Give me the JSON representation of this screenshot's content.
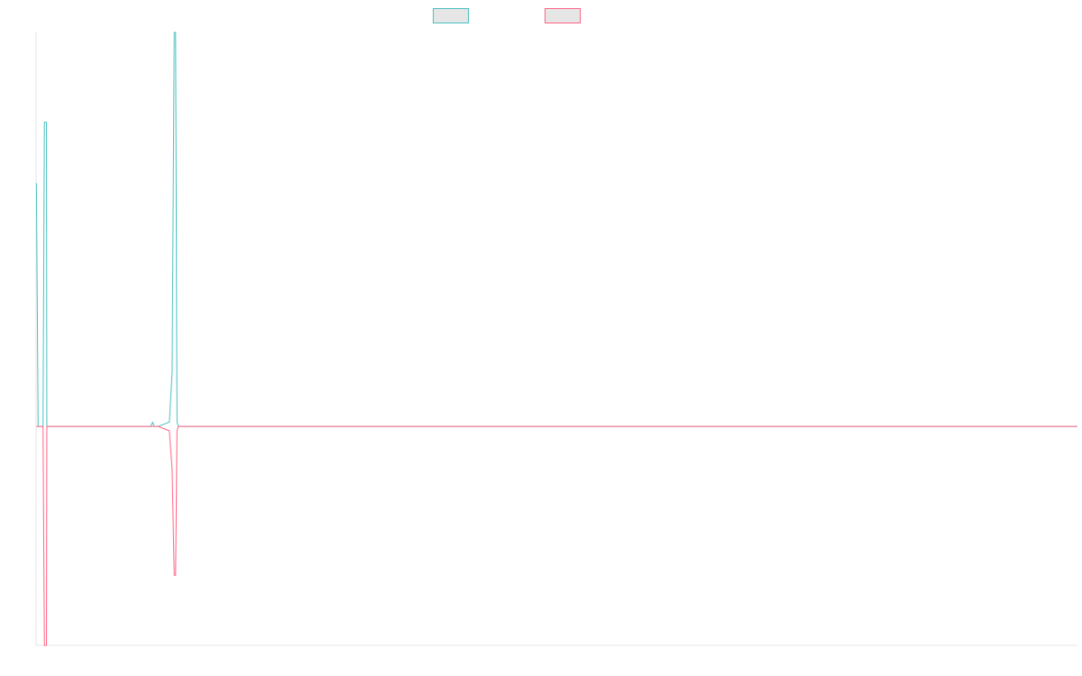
{
  "chart_data": {
    "type": "line",
    "title": "",
    "xlabel": "",
    "ylabel": "",
    "grid": false,
    "legend_position": "top-center",
    "xlim": [
      0,
      150
    ],
    "ylim": [
      -1.0,
      1.8
    ],
    "x": [
      0,
      0.05,
      0.3,
      0.85,
      1.0,
      1.2,
      1.5,
      1.55,
      1.75,
      16.5,
      16.8,
      17.0,
      17.3,
      17.6,
      19.2,
      19.6,
      19.9,
      20.1,
      20.3,
      20.5,
      20.8,
      21.2,
      150
    ],
    "series": [
      {
        "name": "",
        "color": "#4bc0c0",
        "values": [
          1.11,
          1.11,
          0,
          0,
          0,
          1.39,
          1.39,
          0,
          0,
          0,
          0.02,
          0,
          0,
          0,
          0.02,
          0.25,
          1.8,
          1.8,
          0.02,
          0,
          0,
          0,
          0
        ]
      },
      {
        "name": "",
        "color": "#ff6384",
        "values": [
          0,
          0,
          0,
          0,
          0,
          -1.0,
          -1.0,
          0,
          0,
          0,
          0,
          0,
          0,
          0,
          -0.02,
          -0.2,
          -0.68,
          -0.68,
          -0.02,
          0,
          0,
          0,
          0
        ]
      }
    ]
  }
}
